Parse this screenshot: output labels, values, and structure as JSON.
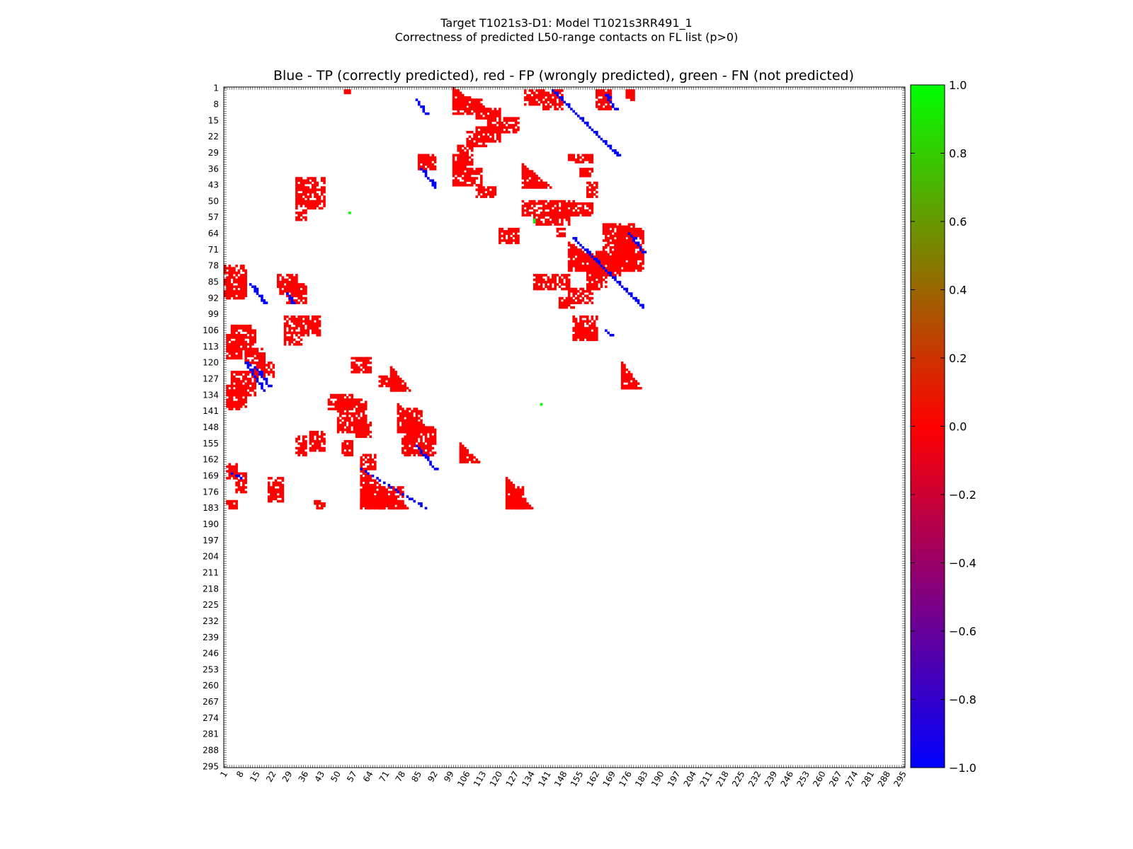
{
  "chart_data": {
    "type": "heatmap",
    "suptitle_line1": "Target T1021s3-D1: Model T1021s3RR491_1",
    "suptitle_line2": "Correctness of predicted L50-range contacts on FL list (p>0)",
    "title": "Blue - TP (correctly predicted), red - FP (wrongly predicted), green - FN (not predicted)",
    "xlabel": "",
    "ylabel": "",
    "n_residues": 295,
    "x_range": [
      1,
      295
    ],
    "y_range": [
      1,
      295
    ],
    "ticks": [
      "1",
      "8",
      "15",
      "22",
      "29",
      "36",
      "43",
      "50",
      "57",
      "64",
      "71",
      "78",
      "85",
      "92",
      "99",
      "106",
      "113",
      "120",
      "127",
      "134",
      "141",
      "148",
      "155",
      "162",
      "169",
      "176",
      "183",
      "190",
      "197",
      "204",
      "211",
      "218",
      "225",
      "232",
      "239",
      "246",
      "253",
      "260",
      "267",
      "274",
      "281",
      "288",
      "295"
    ],
    "colorbar": {
      "range": [
        -1.0,
        1.0
      ],
      "ticks": [
        "1.0",
        "0.8",
        "0.6",
        "0.4",
        "0.2",
        "0.0",
        "−0.2",
        "−0.4",
        "−0.6",
        "−0.8",
        "−1.0"
      ],
      "colors": [
        "#0000ff",
        "#ff0000",
        "#00ff00"
      ]
    },
    "categories": {
      "TP": {
        "value": -1.0,
        "color": "#0000ff"
      },
      "FP": {
        "value": 0.0,
        "color": "#ff0000"
      },
      "FN": {
        "value": 1.0,
        "color": "#00ff00"
      }
    },
    "fp_regions": [
      [
        2,
        3,
        53,
        56
      ],
      [
        2,
        8,
        131,
        147
      ],
      [
        2,
        10,
        162,
        168
      ],
      [
        2,
        6,
        175,
        178
      ],
      [
        6,
        10,
        139,
        147
      ],
      [
        6,
        12,
        100,
        112
      ],
      [
        10,
        14,
        110,
        120
      ],
      [
        14,
        20,
        115,
        128
      ],
      [
        18,
        24,
        110,
        120
      ],
      [
        20,
        26,
        106,
        114
      ],
      [
        26,
        34,
        102,
        108
      ],
      [
        30,
        36,
        85,
        92
      ],
      [
        30,
        36,
        100,
        106
      ],
      [
        30,
        33,
        150,
        160
      ],
      [
        36,
        43,
        100,
        112
      ],
      [
        36,
        39,
        155,
        160
      ],
      [
        44,
        48,
        110,
        118
      ],
      [
        50,
        56,
        130,
        152
      ],
      [
        56,
        60,
        135,
        150
      ],
      [
        51,
        56,
        148,
        160
      ],
      [
        42,
        48,
        158,
        162
      ],
      [
        62,
        68,
        120,
        128
      ],
      [
        62,
        65,
        145,
        148
      ],
      [
        60,
        80,
        165,
        178
      ],
      [
        62,
        80,
        172,
        182
      ],
      [
        72,
        82,
        160,
        172
      ],
      [
        80,
        88,
        158,
        166
      ],
      [
        82,
        88,
        135,
        150
      ],
      [
        88,
        94,
        150,
        160
      ],
      [
        92,
        96,
        146,
        152
      ],
      [
        100,
        110,
        152,
        162
      ],
      [
        40,
        53,
        32,
        44
      ],
      [
        54,
        58,
        32,
        36
      ],
      [
        78,
        92,
        1,
        10
      ],
      [
        82,
        90,
        24,
        32
      ],
      [
        86,
        94,
        28,
        36
      ],
      [
        100,
        112,
        27,
        34
      ],
      [
        100,
        108,
        35,
        42
      ],
      [
        104,
        116,
        4,
        14
      ],
      [
        108,
        118,
        2,
        8
      ],
      [
        114,
        120,
        10,
        18
      ],
      [
        120,
        126,
        14,
        22
      ],
      [
        118,
        124,
        56,
        64
      ],
      [
        124,
        134,
        4,
        14
      ],
      [
        126,
        130,
        68,
        76
      ],
      [
        130,
        140,
        2,
        10
      ],
      [
        134,
        140,
        46,
        56
      ],
      [
        136,
        150,
        50,
        62
      ],
      [
        140,
        150,
        80,
        86
      ],
      [
        146,
        152,
        58,
        64
      ],
      [
        148,
        160,
        78,
        92
      ],
      [
        150,
        158,
        38,
        44
      ],
      [
        152,
        160,
        32,
        36
      ],
      [
        154,
        160,
        52,
        56
      ],
      [
        160,
        166,
        60,
        66
      ],
      [
        164,
        170,
        2,
        6
      ],
      [
        168,
        176,
        6,
        10
      ],
      [
        170,
        180,
        20,
        26
      ],
      [
        174,
        183,
        68,
        78
      ],
      [
        178,
        183,
        60,
        68
      ],
      [
        180,
        183,
        2,
        6
      ],
      [
        180,
        183,
        40,
        44
      ],
      [
        174,
        183,
        124,
        130
      ]
    ],
    "fp_tris": [
      [
        1,
        10,
        100,
        115
      ],
      [
        34,
        44,
        130,
        142
      ],
      [
        68,
        80,
        150,
        168
      ],
      [
        102,
        110,
        153,
        162
      ],
      [
        120,
        131,
        173,
        181
      ],
      [
        122,
        132,
        73,
        81
      ],
      [
        138,
        150,
        76,
        90
      ],
      [
        155,
        163,
        103,
        111
      ],
      [
        166,
        183,
        60,
        80
      ],
      [
        170,
        183,
        123,
        134
      ]
    ],
    "tp_diagonals": [
      [
        2,
        30,
        143,
        171
      ],
      [
        4,
        10,
        166,
        170
      ],
      [
        6,
        12,
        84,
        88
      ],
      [
        36,
        44,
        86,
        92
      ],
      [
        66,
        96,
        152,
        182
      ],
      [
        64,
        72,
        176,
        182
      ],
      [
        86,
        94,
        12,
        18
      ],
      [
        90,
        94,
        28,
        30
      ],
      [
        120,
        132,
        10,
        18
      ],
      [
        122,
        130,
        14,
        20
      ],
      [
        156,
        166,
        84,
        92
      ],
      [
        166,
        183,
        60,
        88
      ],
      [
        168,
        170,
        4,
        8
      ],
      [
        106,
        108,
        166,
        168
      ]
    ],
    "fn_points": [
      [
        138,
        138
      ],
      [
        55,
        55
      ],
      [
        58,
        135
      ],
      [
        59,
        135
      ]
    ]
  }
}
